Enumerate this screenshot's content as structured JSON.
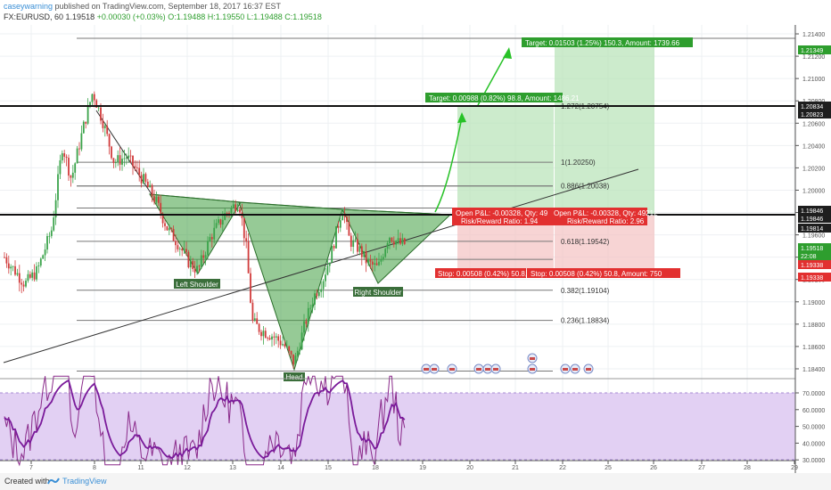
{
  "header": {
    "author": "caseywarning",
    "published_text": "published on TradingView.com, September 18, 2017 16:37 EST",
    "symbol": "FX:EURUSD, 60",
    "last": "1.19518",
    "change": "+0.00030 (+0.03%)",
    "ohlc": "O:1.19488 H:1.19550 L:1.19488 C:1.19518"
  },
  "footer": {
    "created_with": "Created with",
    "brand": "TradingView"
  },
  "chart_data": {
    "type": "candlestick",
    "symbol": "EURUSD",
    "timeframe": "60",
    "x_tick_labels": [
      "7",
      "8",
      "11",
      "12",
      "13",
      "14",
      "15",
      "18",
      "19",
      "20",
      "21",
      "22",
      "25",
      "26",
      "27",
      "28",
      "29"
    ],
    "y_tick_labels": [
      "1.21400",
      "1.21200",
      "1.21000",
      "1.20800",
      "1.20600",
      "1.20400",
      "1.20200",
      "1.20000",
      "1.19800",
      "1.19600",
      "1.19400",
      "1.19200",
      "1.19000",
      "1.18800",
      "1.18600",
      "1.18400"
    ],
    "ylim": [
      1.1832,
      1.2148
    ],
    "price_flags": [
      {
        "value": "1.21349",
        "color": "#2e9e2e"
      },
      {
        "value": "1.20834",
        "color": "#1e1e1e"
      },
      {
        "value": "1.20823",
        "color": "#1e1e1e"
      },
      {
        "value": "1.19846",
        "color": "#1e1e1e"
      },
      {
        "value": "1.19846",
        "color": "#1e1e1e"
      },
      {
        "value": "1.19814",
        "color": "#1e1e1e"
      },
      {
        "value": "1.19518",
        "color": "#2e9e2e"
      },
      {
        "value": "22:08",
        "color": "#2e9e2e"
      },
      {
        "value": "1.19338",
        "color": "#e23030"
      },
      {
        "value": "1.19338",
        "color": "#e23030"
      }
    ],
    "fib_levels": [
      {
        "label": "1.272(1.20754)",
        "value": 1.20754
      },
      {
        "label": "1(1.20250)",
        "value": 1.2025
      },
      {
        "label": "0.886(1.20038)",
        "value": 1.20038
      },
      {
        "label": "0.618(1.19542)",
        "value": 1.19542
      },
      {
        "label": "0.382(1.19104)",
        "value": 1.19104
      },
      {
        "label": "0.236(1.18834)",
        "value": 1.18834
      }
    ],
    "horizontal_lines": [
      1.20834,
      1.19846
    ],
    "pattern_labels": [
      "Left Shoulder",
      "Head",
      "Right Shoulder"
    ],
    "positions": [
      {
        "target": "Target: 0.00988 (0.82%) 98.8, Amount: 1486.21",
        "pnl": "Open P&L: -0.00328, Qty: 49",
        "rr": "Risk/Reward Ratio: 1.94",
        "stop": "Stop: 0.00508 (0.42%) 50.8,"
      },
      {
        "target": "Target: 0.01503 (1.25%) 150.3, Amount: 1739.66",
        "pnl": "Open P&L: -0.00328, Qty: 49212",
        "rr": "Risk/Reward Ratio: 2.96",
        "stop": "Stop: 0.00508 (0.42%) 50.8, Amount: 750"
      }
    ],
    "rsi": {
      "y_tick_labels": [
        "70.0000",
        "60.0000",
        "50.0000",
        "40.0000",
        "30.0000"
      ],
      "ylim": [
        27,
        80
      ],
      "band": [
        30,
        70
      ]
    }
  }
}
